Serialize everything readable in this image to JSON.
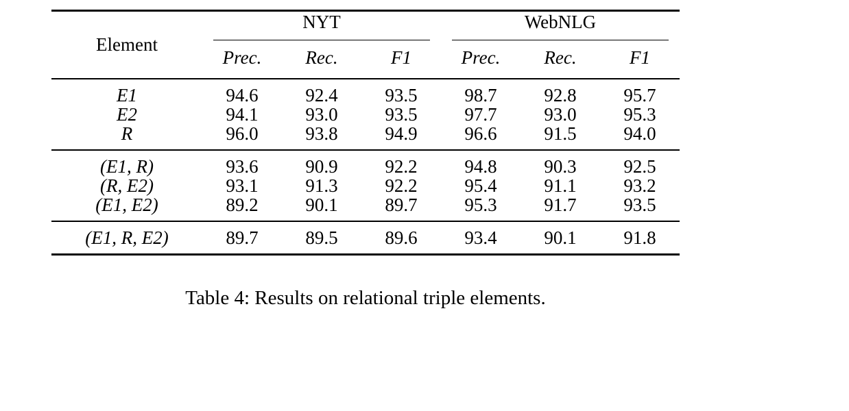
{
  "table": {
    "element_header": "Element",
    "group_headers": [
      "NYT",
      "WebNLG"
    ],
    "sub_headers": [
      "Prec.",
      "Rec.",
      "F1",
      "Prec.",
      "Rec.",
      "F1"
    ],
    "groups": [
      {
        "rows": [
          {
            "label": "E1",
            "values": [
              "94.6",
              "92.4",
              "93.5",
              "98.7",
              "92.8",
              "95.7"
            ]
          },
          {
            "label": "E2",
            "values": [
              "94.1",
              "93.0",
              "93.5",
              "97.7",
              "93.0",
              "95.3"
            ]
          },
          {
            "label": "R",
            "values": [
              "96.0",
              "93.8",
              "94.9",
              "96.6",
              "91.5",
              "94.0"
            ]
          }
        ]
      },
      {
        "rows": [
          {
            "label": "(E1, R)",
            "values": [
              "93.6",
              "90.9",
              "92.2",
              "94.8",
              "90.3",
              "92.5"
            ]
          },
          {
            "label": "(R, E2)",
            "values": [
              "93.1",
              "91.3",
              "92.2",
              "95.4",
              "91.1",
              "93.2"
            ]
          },
          {
            "label": "(E1, E2)",
            "values": [
              "89.2",
              "90.1",
              "89.7",
              "95.3",
              "91.7",
              "93.5"
            ]
          }
        ]
      },
      {
        "rows": [
          {
            "label": "(E1, R, E2)",
            "values": [
              "89.7",
              "89.5",
              "89.6",
              "93.4",
              "90.1",
              "91.8"
            ]
          }
        ]
      }
    ]
  },
  "caption": "Table 4: Results on relational triple elements."
}
